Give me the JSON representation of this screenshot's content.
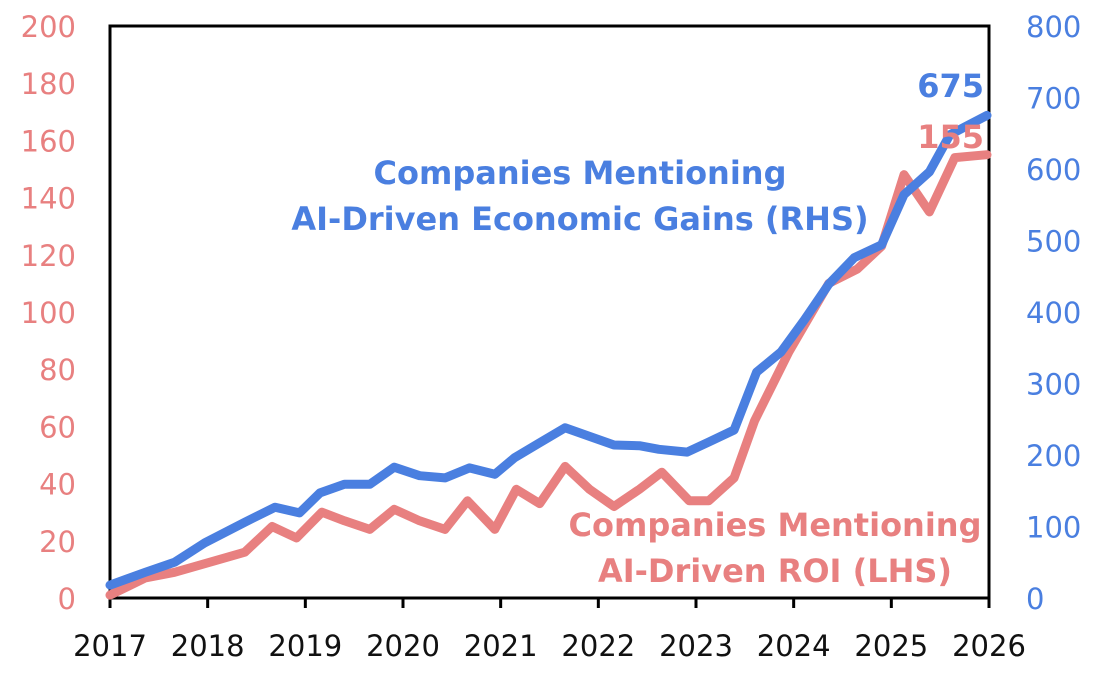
{
  "colors": {
    "lhs": "#E88080",
    "rhs": "#4A7FE0",
    "axis": "#000000",
    "xtick_text": "#111111"
  },
  "chart_data": {
    "type": "line",
    "title": "",
    "xlabel": "",
    "ylabel_left": "",
    "ylabel_right": "",
    "x_ticks": [
      "2017",
      "2018",
      "2019",
      "2020",
      "2021",
      "2022",
      "2023",
      "2024",
      "2025",
      "2026"
    ],
    "xlim": [
      2017,
      2026
    ],
    "y_left": {
      "ticks": [
        "0",
        "20",
        "40",
        "60",
        "80",
        "100",
        "120",
        "140",
        "160",
        "180",
        "200"
      ],
      "ylim": [
        0,
        200
      ]
    },
    "y_right": {
      "ticks": [
        "0",
        "100",
        "200",
        "300",
        "400",
        "500",
        "600",
        "700",
        "800"
      ],
      "ylim": [
        0,
        800
      ]
    },
    "grid": false,
    "legend": "inline annotations",
    "series": [
      {
        "name": "Companies Mentioning AI-Driven Economic Gains (RHS)",
        "axis": "right",
        "label_lines": [
          "Companies Mentioning",
          "AI-Driven Economic Gains (RHS)"
        ],
        "end_label": "675",
        "x": [
          2017.0,
          2017.36,
          2017.66,
          2017.97,
          2018.38,
          2018.69,
          2018.94,
          2019.15,
          2019.4,
          2019.66,
          2019.91,
          2020.17,
          2020.43,
          2020.68,
          2020.94,
          2021.14,
          2021.4,
          2021.66,
          2021.91,
          2022.16,
          2022.42,
          2022.62,
          2022.91,
          2023.13,
          2023.39,
          2023.62,
          2023.87,
          2024.11,
          2024.36,
          2024.62,
          2024.9,
          2025.13,
          2025.39,
          2025.6,
          2025.98
        ],
        "values": [
          18,
          36,
          50,
          77,
          106,
          127,
          119,
          147,
          159,
          159,
          183,
          171,
          168,
          182,
          173,
          196,
          217,
          238,
          226,
          214,
          213,
          208,
          204,
          218,
          235,
          316,
          344,
          389,
          439,
          476,
          494,
          564,
          596,
          648,
          675
        ]
      },
      {
        "name": "Companies Mentioning AI-Driven ROI (LHS)",
        "axis": "left",
        "label_lines": [
          "Companies Mentioning",
          "AI-Driven ROI (LHS)"
        ],
        "end_label": "155",
        "x": [
          2017.0,
          2017.36,
          2017.66,
          2017.97,
          2018.38,
          2018.66,
          2018.91,
          2019.17,
          2019.4,
          2019.66,
          2019.91,
          2020.17,
          2020.43,
          2020.66,
          2020.94,
          2021.16,
          2021.4,
          2021.66,
          2021.91,
          2022.16,
          2022.42,
          2022.65,
          2022.93,
          2023.13,
          2023.39,
          2023.6,
          2023.95,
          2024.36,
          2024.65,
          2024.9,
          2025.13,
          2025.39,
          2025.65,
          2025.98
        ],
        "values": [
          1,
          7,
          9,
          12,
          16,
          25,
          21,
          30,
          27,
          24,
          31,
          27,
          24,
          34,
          24,
          38,
          33,
          46,
          38,
          32,
          38,
          44,
          34,
          34,
          42,
          62,
          86,
          110,
          115,
          123,
          148,
          135,
          154,
          155
        ]
      }
    ]
  }
}
